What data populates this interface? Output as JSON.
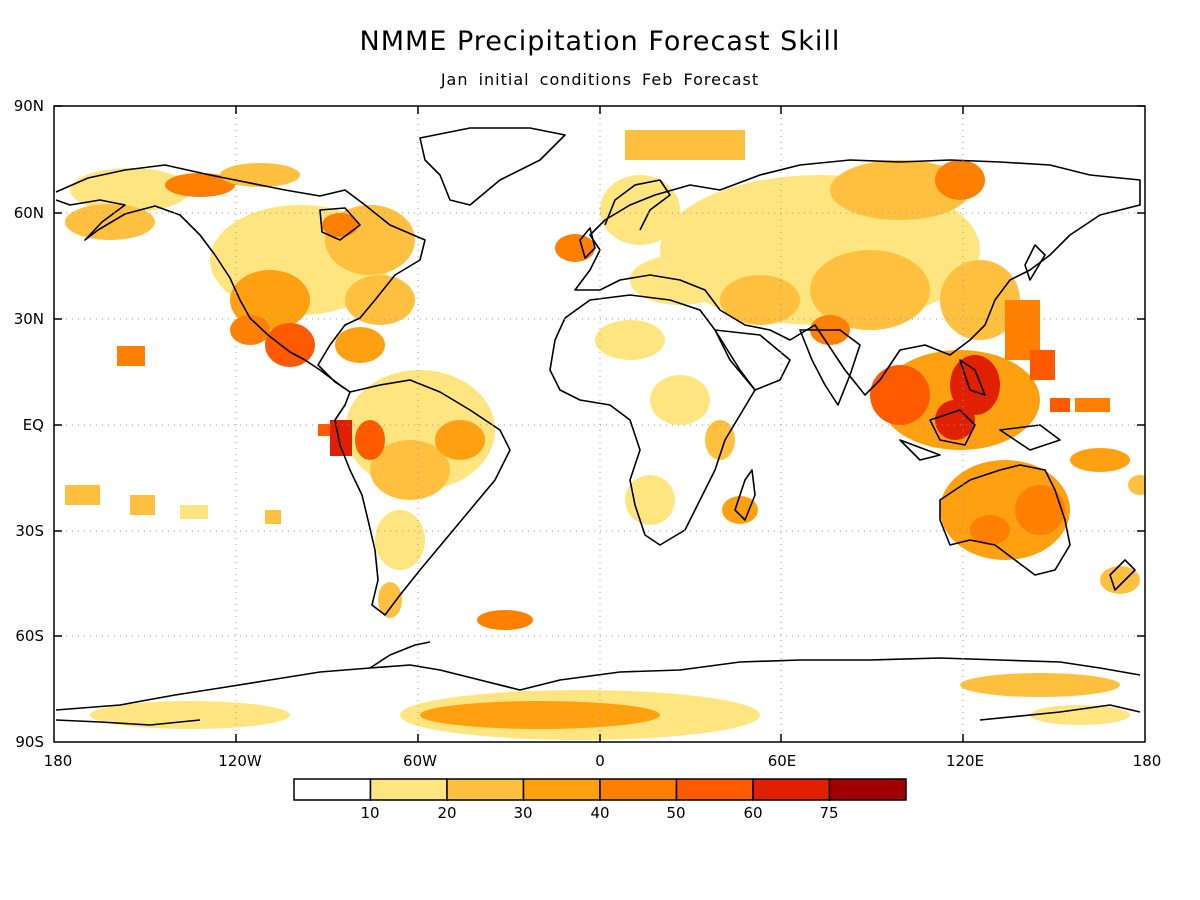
{
  "header": {
    "title": "NMME Precipitation Forecast Skill",
    "subtitle": "Jan initial conditions  Feb Forecast"
  },
  "axes": {
    "lat_labels": [
      "90N",
      "60N",
      "30N",
      "EQ",
      "30S",
      "60S",
      "90S"
    ],
    "lon_labels": [
      "180",
      "120W",
      "60W",
      "0",
      "60E",
      "120E",
      "180"
    ]
  },
  "legend": {
    "labels": [
      "10",
      "20",
      "30",
      "40",
      "50",
      "60",
      "75"
    ],
    "colors": [
      "#ffffff",
      "#ffe57f",
      "#ffc040",
      "#ffa010",
      "#ff8000",
      "#ff5a00",
      "#e02000",
      "#a00000"
    ]
  },
  "colors": {
    "coast": "#000000",
    "grid": "#999999"
  }
}
